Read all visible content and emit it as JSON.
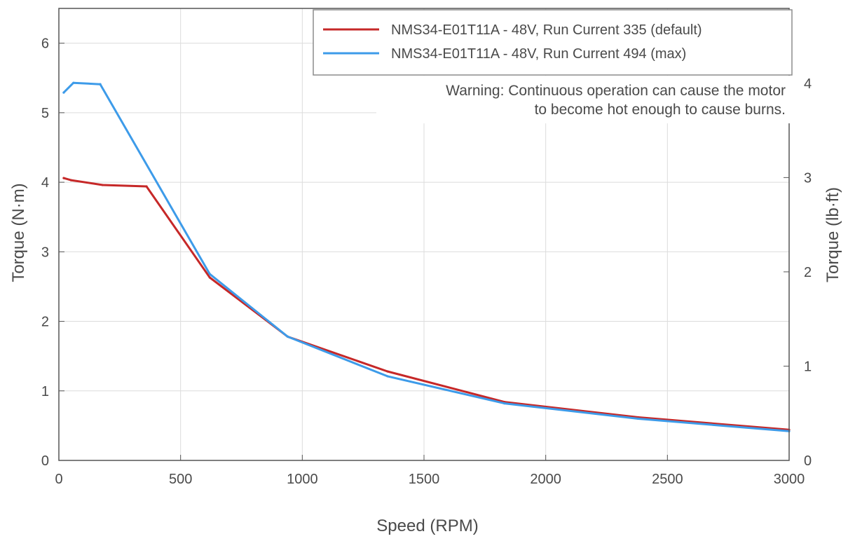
{
  "chart_data": {
    "type": "line",
    "xlabel": "Speed (RPM)",
    "ylabel": "Torque (N·m)",
    "y2label": "Torque (lb·ft)",
    "xlim": [
      0,
      3000
    ],
    "ylim": [
      0,
      6.5
    ],
    "y2lim": [
      0,
      4.794
    ],
    "grid": true,
    "legend_position": "top-right",
    "x_ticks": [
      0,
      500,
      1000,
      1500,
      2000,
      2500,
      3000
    ],
    "x_tick_labels": [
      "0",
      "500",
      "1000",
      "1500",
      "2000",
      "2500",
      "3000"
    ],
    "y_ticks": [
      0,
      1,
      2,
      3,
      4,
      5,
      6
    ],
    "y_tick_labels": [
      "0",
      "1",
      "2",
      "3",
      "4",
      "5",
      "6"
    ],
    "y2_ticks": [
      0,
      1,
      2,
      3,
      4
    ],
    "y2_tick_labels": [
      "0",
      "1",
      "2",
      "3",
      "4"
    ],
    "annotation": {
      "lines": [
        "Warning: Continuous operation can cause the motor",
        "to become hot enough to cause burns."
      ],
      "position": "top-right"
    },
    "series": [
      {
        "name": "NMS34-E01T11A - 48V, Run Current 335 (default)",
        "color": "#c62828",
        "x": [
          20,
          50,
          180,
          360,
          620,
          940,
          1350,
          1830,
          2380,
          3000
        ],
        "y": [
          4.06,
          4.03,
          3.96,
          3.94,
          2.63,
          1.78,
          1.28,
          0.84,
          0.62,
          0.44
        ]
      },
      {
        "name": "NMS34-E01T11A - 48V, Run Current 494 (max)",
        "color": "#3d9be9",
        "x": [
          20,
          60,
          170,
          620,
          940,
          1350,
          1830,
          2380,
          3000
        ],
        "y": [
          5.29,
          5.43,
          5.41,
          2.68,
          1.78,
          1.21,
          0.82,
          0.6,
          0.42
        ]
      }
    ]
  }
}
